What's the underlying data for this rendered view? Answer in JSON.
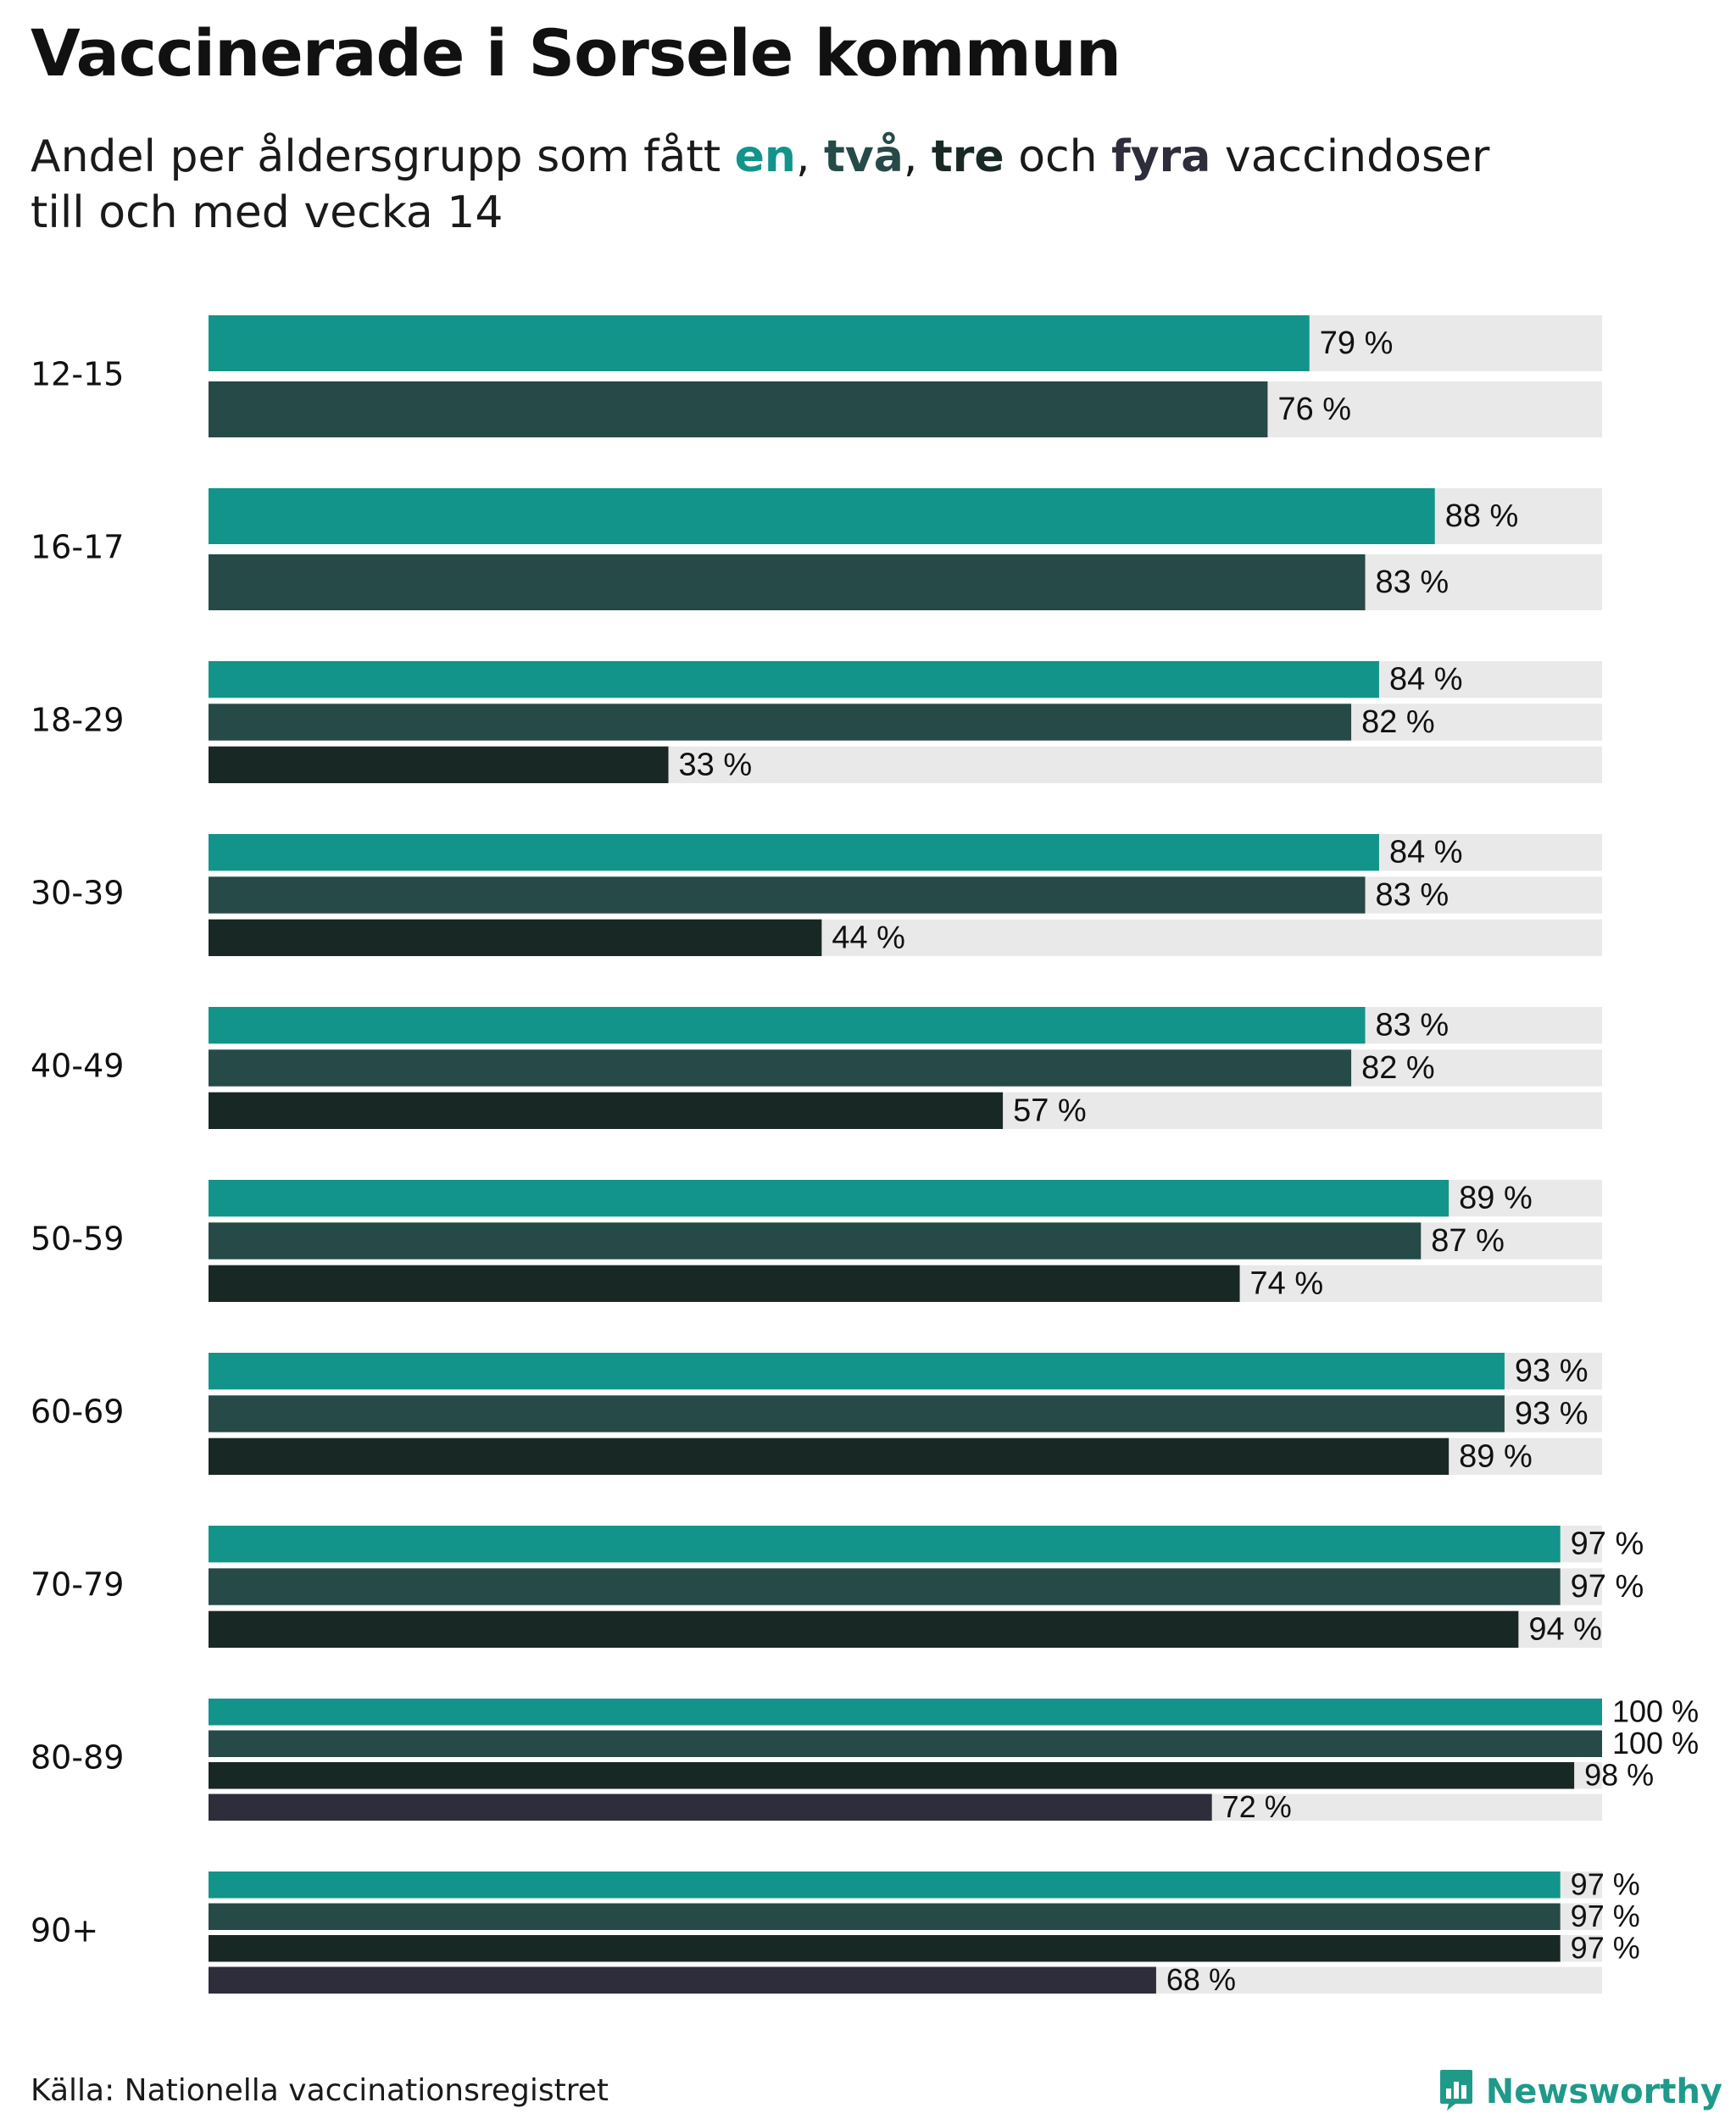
{
  "title": "Vaccinerade i Sorsele kommun",
  "subtitle": {
    "prefix": "Andel per åldersgrupp som fått ",
    "en": "en",
    "sep1": ", ",
    "tva": "två",
    "sep2": ", ",
    "tre": "tre",
    "och": " och ",
    "fyra": "fyra",
    "suffix": " vaccindoser",
    "line2": "till och med vecka 14"
  },
  "colors": {
    "en": "#13948a",
    "tva": "#254a48",
    "tre": "#182825",
    "fyra": "#2e2d3b",
    "track": "#e9e9e9",
    "text": "#111111"
  },
  "chart_data": {
    "type": "bar",
    "orientation": "horizontal",
    "value_suffix": " %",
    "xlim": [
      0,
      100
    ],
    "series": [
      {
        "name": "en",
        "color_key": "en"
      },
      {
        "name": "två",
        "color_key": "tva"
      },
      {
        "name": "tre",
        "color_key": "tre"
      },
      {
        "name": "fyra",
        "color_key": "fyra"
      }
    ],
    "groups": [
      {
        "label": "12-15",
        "values": [
          79,
          76
        ]
      },
      {
        "label": "16-17",
        "values": [
          88,
          83
        ]
      },
      {
        "label": "18-29",
        "values": [
          84,
          82,
          33
        ]
      },
      {
        "label": "30-39",
        "values": [
          84,
          83,
          44
        ]
      },
      {
        "label": "40-49",
        "values": [
          83,
          82,
          57
        ]
      },
      {
        "label": "50-59",
        "values": [
          89,
          87,
          74
        ]
      },
      {
        "label": "60-69",
        "values": [
          93,
          93,
          89
        ]
      },
      {
        "label": "70-79",
        "values": [
          97,
          97,
          94
        ]
      },
      {
        "label": "80-89",
        "values": [
          100,
          100,
          98,
          72
        ]
      },
      {
        "label": "90+",
        "values": [
          97,
          97,
          97,
          68
        ]
      }
    ]
  },
  "footer": {
    "source": "Källa: Nationella vaccinationsregistret",
    "brand": "Newsworthy",
    "brand_icon": "newsworthy-logo-icon"
  }
}
